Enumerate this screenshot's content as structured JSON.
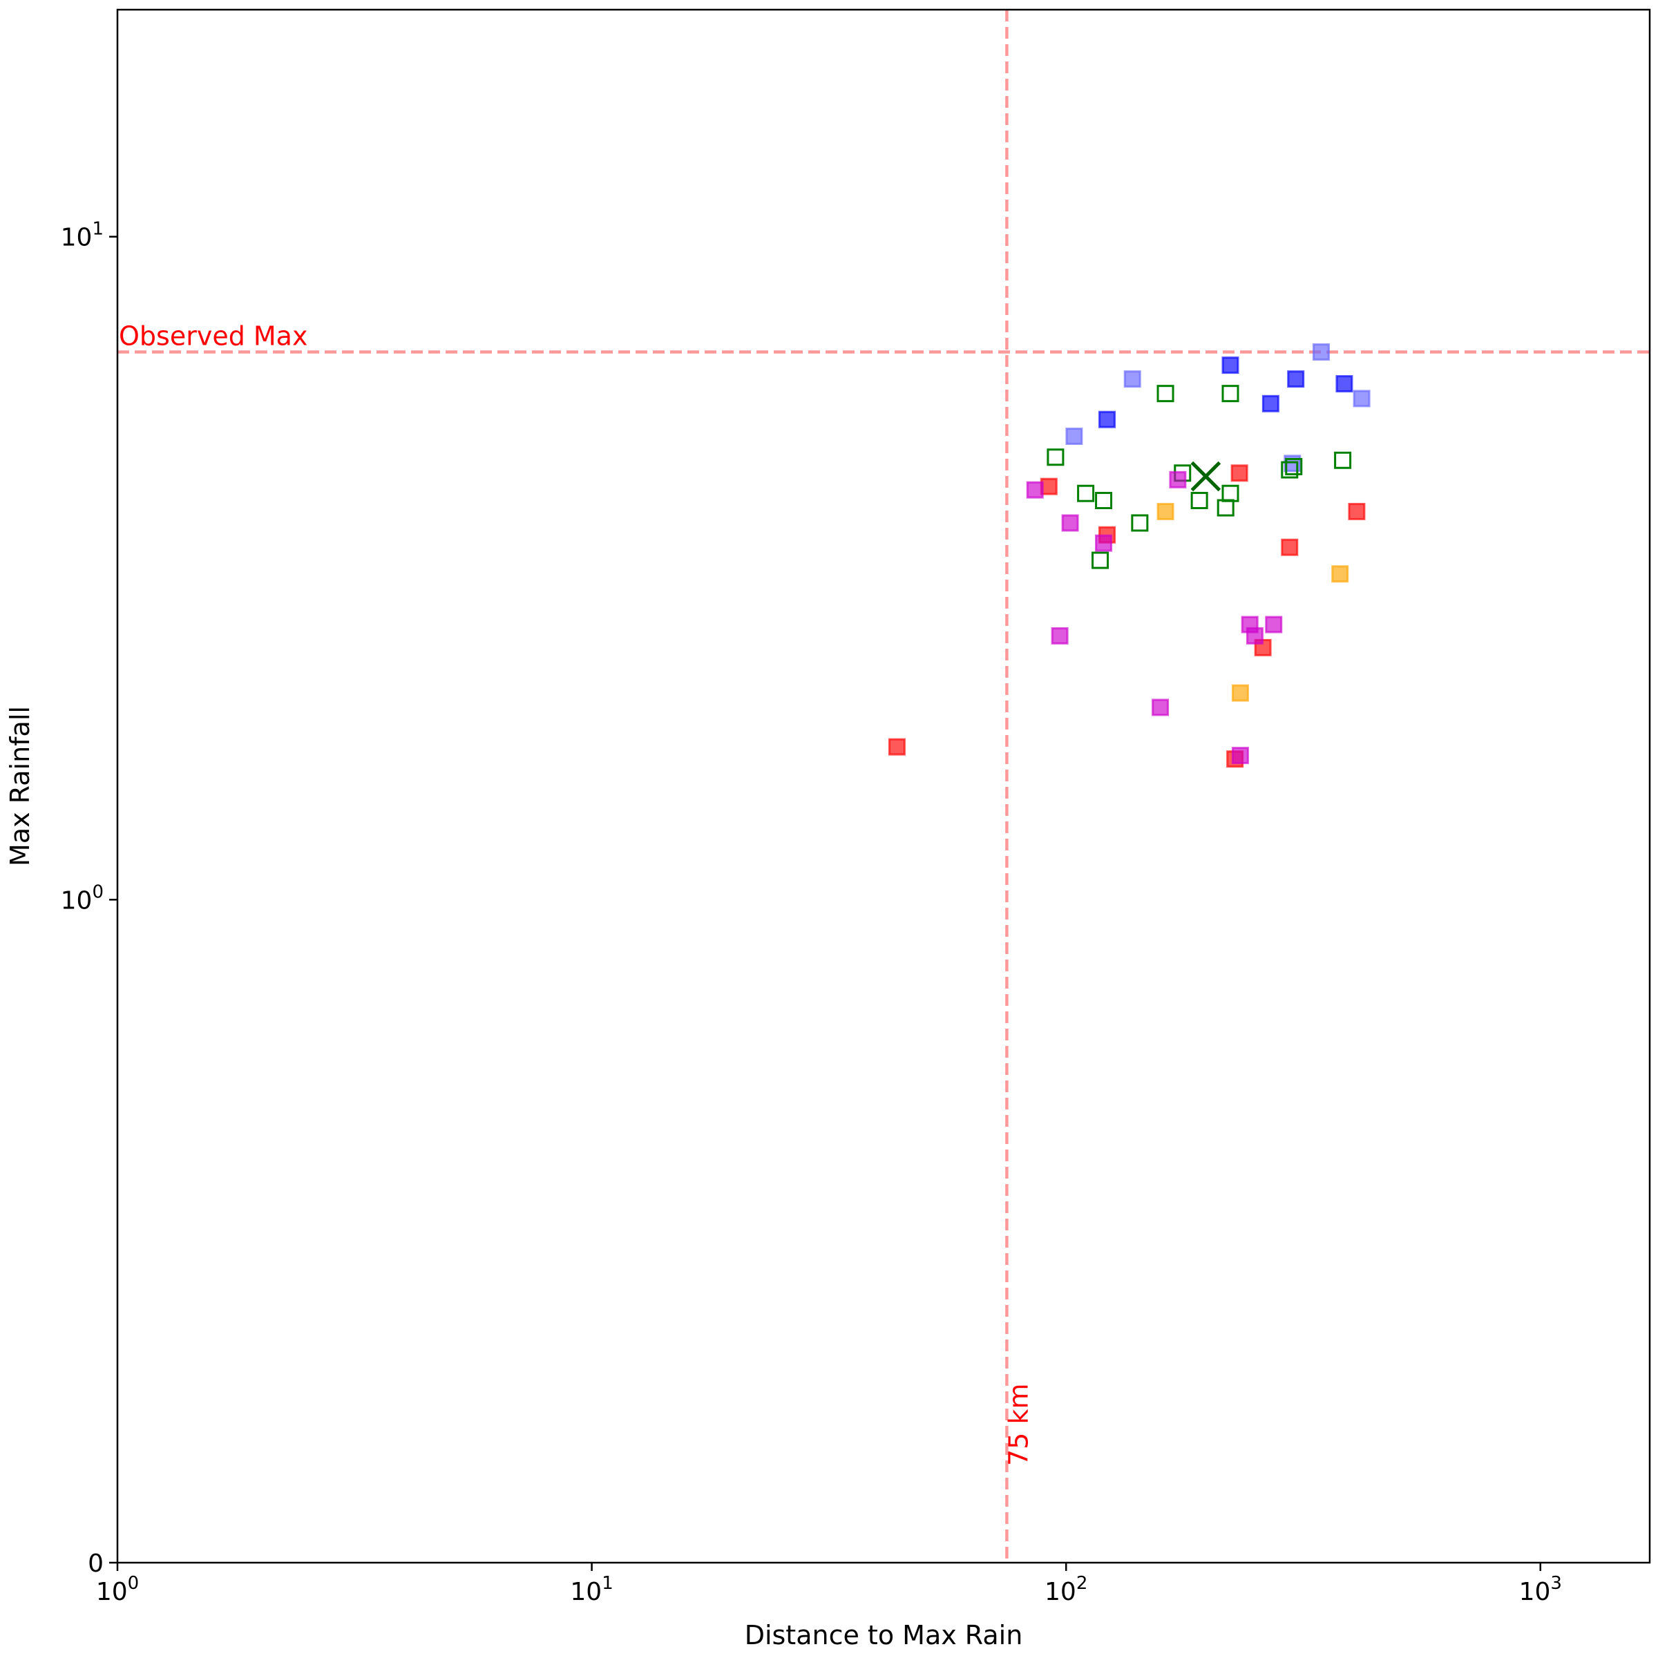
{
  "chart_data": {
    "type": "scatter",
    "title": "",
    "xlabel": "Distance to Max Rain",
    "ylabel": "Max Rainfall",
    "xscale": "log",
    "yscale": "symlog",
    "xlim": [
      1,
      1700
    ],
    "ylim": [
      0,
      22
    ],
    "grid": false,
    "xticks": [
      {
        "value": 1,
        "base": "10",
        "exp": "0"
      },
      {
        "value": 10,
        "base": "10",
        "exp": "1"
      },
      {
        "value": 100,
        "base": "10",
        "exp": "2"
      },
      {
        "value": 1000,
        "base": "10",
        "exp": "3"
      }
    ],
    "yticks": [
      {
        "value": 0,
        "base": "0",
        "exp": ""
      },
      {
        "value": 1,
        "base": "10",
        "exp": "0"
      },
      {
        "value": 10,
        "base": "10",
        "exp": "1"
      }
    ],
    "reference_lines": [
      {
        "orientation": "horizontal",
        "value": 6.7,
        "label": "Observed Max",
        "color": "#ff9999"
      },
      {
        "orientation": "vertical",
        "value": 75,
        "label": "75 km",
        "color": "#ff9999"
      }
    ],
    "series": [
      {
        "color": "#0000ff",
        "filled": true,
        "points": [
          [
            122,
            5.3
          ],
          [
            222,
            6.4
          ],
          [
            270,
            5.6
          ],
          [
            305,
            6.1
          ],
          [
            386,
            6.0
          ]
        ]
      },
      {
        "color": "#6666ff",
        "filled": true,
        "points": [
          [
            104,
            5.0
          ],
          [
            138,
            6.1
          ],
          [
            345,
            6.7
          ],
          [
            420,
            5.7
          ],
          [
            300,
            4.55
          ]
        ]
      },
      {
        "color": "#008000",
        "filled": false,
        "points": [
          [
            95,
            4.65
          ],
          [
            110,
            4.1
          ],
          [
            120,
            4.0
          ],
          [
            118,
            3.25
          ],
          [
            143,
            3.7
          ],
          [
            162,
            5.8
          ],
          [
            176,
            4.4
          ],
          [
            191,
            4.0
          ],
          [
            217,
            3.9
          ],
          [
            222,
            4.1
          ],
          [
            222,
            5.8
          ],
          [
            296,
            4.45
          ],
          [
            302,
            4.5
          ],
          [
            383,
            4.6
          ]
        ]
      },
      {
        "color": "#ff0000",
        "filled": true,
        "points": [
          [
            92,
            4.2
          ],
          [
            122,
            3.55
          ],
          [
            296,
            3.4
          ],
          [
            410,
            3.85
          ],
          [
            227,
            1.63
          ],
          [
            44,
            1.7
          ],
          [
            260,
            2.4
          ],
          [
            232,
            4.4
          ]
        ]
      },
      {
        "color": "#ffa500",
        "filled": true,
        "points": [
          [
            162,
            3.85
          ],
          [
            233,
            2.05
          ],
          [
            378,
            3.1
          ]
        ]
      },
      {
        "color": "#cc00cc",
        "filled": true,
        "points": [
          [
            86,
            4.15
          ],
          [
            102,
            3.7
          ],
          [
            120,
            3.45
          ],
          [
            158,
            1.95
          ],
          [
            233,
            1.65
          ],
          [
            244,
            2.6
          ],
          [
            250,
            2.5
          ],
          [
            274,
            2.6
          ],
          [
            172,
            4.3
          ],
          [
            97,
            2.5
          ]
        ]
      }
    ],
    "markers": [
      {
        "shape": "x",
        "color": "#006400",
        "x": 197,
        "y": 4.35
      }
    ]
  }
}
